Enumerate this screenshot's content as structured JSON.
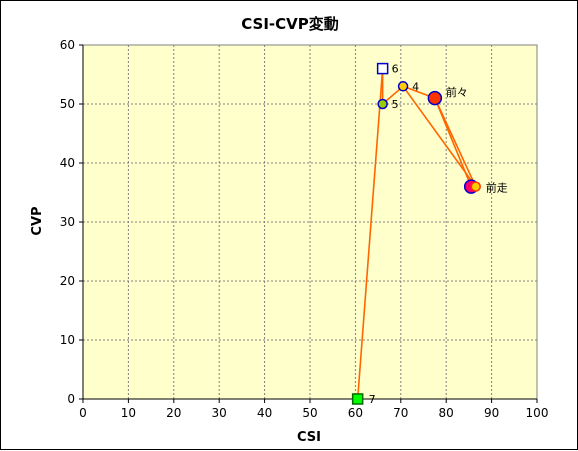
{
  "chart_data": {
    "type": "scatter",
    "title": "CSI-CVP変動",
    "xlabel": "CSI",
    "ylabel": "CVP",
    "xlim": [
      0,
      100
    ],
    "ylim": [
      0,
      60
    ],
    "xticks": [
      0,
      10,
      20,
      30,
      40,
      50,
      60,
      70,
      80,
      90,
      100
    ],
    "yticks": [
      0,
      10,
      20,
      30,
      40,
      50,
      60
    ],
    "grid": true,
    "background_color": "#FFFFCC",
    "line_color": "#FF6600",
    "points": [
      {
        "label": "7",
        "x": 60.5,
        "y": 0,
        "marker": "square",
        "fill": "#00FF00",
        "stroke": "#006600"
      },
      {
        "label": "6",
        "x": 66,
        "y": 56,
        "marker": "square",
        "fill": "#FFFFFF",
        "stroke": "#0000CC"
      },
      {
        "label": "5",
        "x": 66,
        "y": 50,
        "marker": "circle",
        "fill": "#99CC00",
        "stroke": "#0000CC"
      },
      {
        "label": "4",
        "x": 70.5,
        "y": 53,
        "marker": "circle",
        "fill": "#FFCC00",
        "stroke": "#0000CC"
      },
      {
        "label": "前々",
        "x": 77.5,
        "y": 51,
        "marker": "circle-large",
        "fill": "#FF3300",
        "stroke": "#0000CC"
      },
      {
        "label": "",
        "x": 85.5,
        "y": 36,
        "marker": "circle-large",
        "fill": "#FF0066",
        "stroke": "#0000CC"
      },
      {
        "label": "前走",
        "x": 86.5,
        "y": 36,
        "marker": "circle",
        "fill": "#FFCC00",
        "stroke": "#FF3300"
      }
    ],
    "connections": [
      [
        "7",
        "6"
      ],
      [
        "6",
        "5"
      ],
      [
        "5",
        "4"
      ],
      [
        "4",
        "前々"
      ],
      [
        "前々",
        "前走"
      ],
      [
        "4",
        "前走"
      ],
      [
        "前々",
        ""
      ]
    ]
  }
}
